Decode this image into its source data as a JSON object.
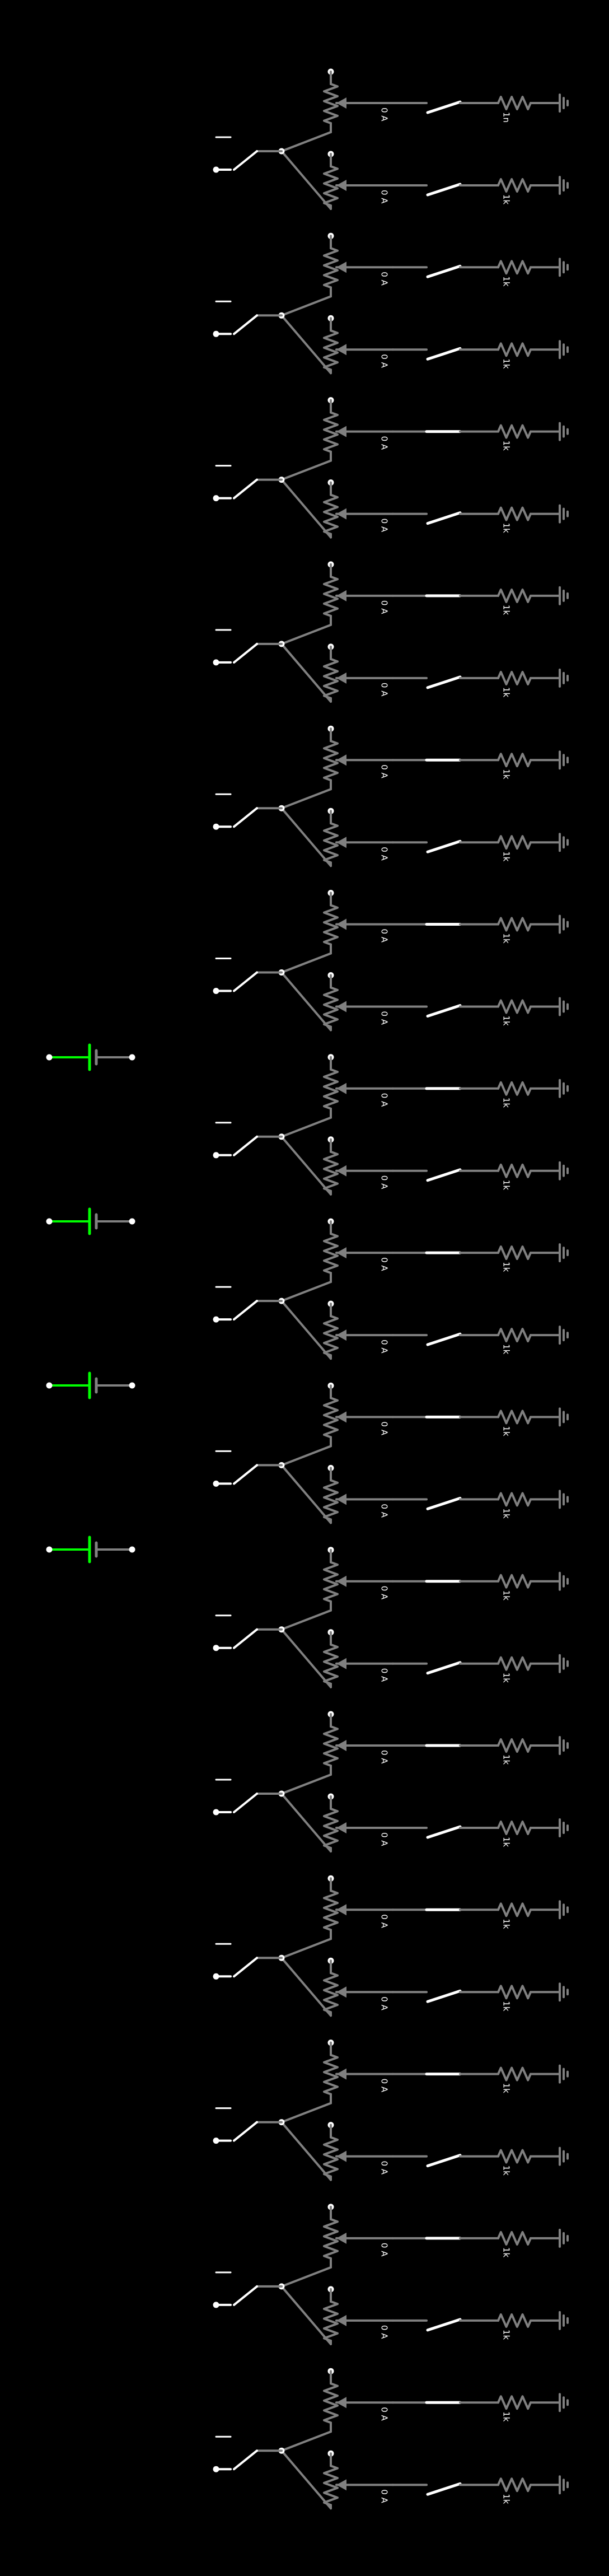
{
  "background": "#000000",
  "colors": {
    "wire": "#808080",
    "terminal": "#ffffff",
    "switch_closed": "#ffffff",
    "battery_positive": "#00ff00",
    "battery_body": "#808080"
  },
  "stages": [
    {
      "index": 1,
      "current_upper": "0 A",
      "current_lower": "0 A",
      "resistor_upper": "1n",
      "resistor_lower": "1k",
      "switch_upper": "open",
      "switch_lower": "open"
    },
    {
      "index": 2,
      "current_upper": "0 A",
      "current_lower": "0 A",
      "resistor_upper": "1k",
      "resistor_lower": "1k",
      "switch_upper": "open",
      "switch_lower": "open"
    },
    {
      "index": 3,
      "current_upper": "0 A",
      "current_lower": "0 A",
      "resistor_upper": "1k",
      "resistor_lower": "1k",
      "switch_upper": "closed",
      "switch_lower": "open"
    },
    {
      "index": 4,
      "current_upper": "0 A",
      "current_lower": "0 A",
      "resistor_upper": "1k",
      "resistor_lower": "1k",
      "switch_upper": "closed",
      "switch_lower": "open"
    },
    {
      "index": 5,
      "current_upper": "0 A",
      "current_lower": "0 A",
      "resistor_upper": "1k",
      "resistor_lower": "1k",
      "switch_upper": "closed",
      "switch_lower": "open"
    },
    {
      "index": 6,
      "current_upper": "0 A",
      "current_lower": "0 A",
      "resistor_upper": "1k",
      "resistor_lower": "1k",
      "switch_upper": "closed",
      "switch_lower": "open"
    },
    {
      "index": 7,
      "current_upper": "0 A",
      "current_lower": "0 A",
      "resistor_upper": "1k",
      "resistor_lower": "1k",
      "switch_upper": "closed",
      "switch_lower": "open"
    },
    {
      "index": 8,
      "current_upper": "0 A",
      "current_lower": "0 A",
      "resistor_upper": "1k",
      "resistor_lower": "1k",
      "switch_upper": "closed",
      "switch_lower": "open"
    },
    {
      "index": 9,
      "current_upper": "0 A",
      "current_lower": "0 A",
      "resistor_upper": "1k",
      "resistor_lower": "1k",
      "switch_upper": "closed",
      "switch_lower": "open"
    },
    {
      "index": 10,
      "current_upper": "0 A",
      "current_lower": "0 A",
      "resistor_upper": "1k",
      "resistor_lower": "1k",
      "switch_upper": "closed",
      "switch_lower": "open"
    },
    {
      "index": 11,
      "current_upper": "0 A",
      "current_lower": "0 A",
      "resistor_upper": "1k",
      "resistor_lower": "1k",
      "switch_upper": "closed",
      "switch_lower": "open"
    },
    {
      "index": 12,
      "current_upper": "0 A",
      "current_lower": "0 A",
      "resistor_upper": "1k",
      "resistor_lower": "1k",
      "switch_upper": "closed",
      "switch_lower": "open"
    },
    {
      "index": 13,
      "current_upper": "0 A",
      "current_lower": "0 A",
      "resistor_upper": "1k",
      "resistor_lower": "1k",
      "switch_upper": "closed",
      "switch_lower": "open"
    },
    {
      "index": 14,
      "current_upper": "0 A",
      "current_lower": "0 A",
      "resistor_upper": "1k",
      "resistor_lower": "1k",
      "switch_upper": "closed",
      "switch_lower": "open"
    },
    {
      "index": 15,
      "current_upper": "0 A",
      "current_lower": "0 A",
      "resistor_upper": "1k",
      "resistor_lower": "1k",
      "switch_upper": "closed",
      "switch_lower": "open"
    }
  ],
  "batteries": [
    {
      "index": 1
    },
    {
      "index": 2
    },
    {
      "index": 3
    },
    {
      "index": 4
    }
  ]
}
